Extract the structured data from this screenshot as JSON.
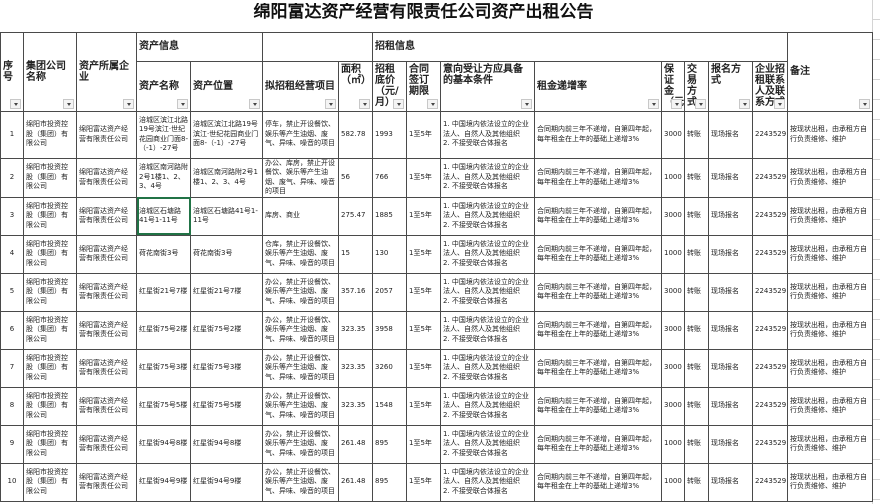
{
  "title": "绵阳富达资产经营有限责任公司资产出租公告",
  "groups": {
    "asset_info": "资产信息",
    "rent_info": "招租信息"
  },
  "headers": {
    "seq": "序号",
    "group_company": "集团公司名称",
    "owner": "资产所属企业",
    "asset_name": "资产名称",
    "asset_location": "资产位置",
    "business": "拟招租经营项目",
    "area": "面积（㎡）",
    "base_price": "招租底价（元/月）",
    "term": "合同签订期限",
    "conditions": "意向受让方应具备的基本条件",
    "increase": "租金递增率",
    "deposit": "保证金（元）",
    "trade": "交易方式",
    "signup": "报名方式",
    "contact": "企业招租联系人及联系方式",
    "remark": "备注"
  },
  "filter_icon": "dropdown-arrow-icon",
  "selection_color": "#217346",
  "rows": [
    {
      "seq": "1",
      "group_company": "绵阳市投资控股（集团）有限公司",
      "owner": "绵阳富达资产经营有限责任公司",
      "asset_name": "涪城区滨江北路19号滨江·世纪花园商业门面8-（-1）-27号",
      "asset_location": "涪城区滨江北路19号滨江·世纪花园商业门面8-（-1）-27号",
      "business": "停车，禁止开设餐饮、娱乐等产生油烟、废气、异味、噪音的项目",
      "area": "582.78",
      "base_price": "1993",
      "term": "1至5年",
      "conditions": "1. 中国境内依法设立的企业法人、自然人及其他组织\n2. 不接受联合体报名",
      "increase": "合同期内前三年不递增，自第四年起，每年租金在上年的基础上递增3%",
      "deposit": "3000",
      "trade": "转账",
      "signup": "现场报名",
      "contact": "2243529",
      "remark": "按现状出租，由承租方自行负责维修、维护"
    },
    {
      "seq": "2",
      "group_company": "绵阳市投资控股（集团）有限公司",
      "owner": "绵阳富达资产经营有限责任公司",
      "asset_name": "涪城区南河路附2号1楼1、2、3、4号",
      "asset_location": "涪城区南河路附2号1楼1、2、3、4号",
      "business": "办公、库房，禁止开设餐饮、娱乐等产生油烟、废气、异味、噪音的项目",
      "area": "56",
      "base_price": "766",
      "term": "1至5年",
      "conditions": "1. 中国境内依法设立的企业法人、自然人及其他组织\n2. 不接受联合体报名",
      "increase": "合同期内前三年不递增，自第四年起，每年租金在上年的基础上递增3%",
      "deposit": "1000",
      "trade": "转账",
      "signup": "现场报名",
      "contact": "2243529",
      "remark": "按现状出租，由承租方自行负责维修、维护"
    },
    {
      "seq": "3",
      "group_company": "绵阳市投资控股（集团）有限公司",
      "owner": "绵阳富达资产经营有限责任公司",
      "asset_name": "涪城区石塘路41号1-11号",
      "asset_location": "涪城区石塘路41号1-11号",
      "business": "库房、商业",
      "area": "275.47",
      "base_price": "1885",
      "term": "1至5年",
      "conditions": "1. 中国境内依法设立的企业法人、自然人及其他组织\n2. 不接受联合体报名",
      "increase": "合同期内前三年不递增，自第四年起，每年租金在上年的基础上递增3%",
      "deposit": "3000",
      "trade": "转账",
      "signup": "现场报名",
      "contact": "2243529",
      "remark": "按现状出租，由承租方自行负责维修、维护"
    },
    {
      "seq": "4",
      "group_company": "绵阳市投资控股（集团）有限公司",
      "owner": "绵阳富达资产经营有限责任公司",
      "asset_name": "荷花南街3号",
      "asset_location": "荷花南街3号",
      "business": "仓库，禁止开设餐饮、娱乐等产生油烟、废气、异味、噪音的项目",
      "area": "15",
      "base_price": "130",
      "term": "1至5年",
      "conditions": "1. 中国境内依法设立的企业法人、自然人及其他组织\n2. 不接受联合体报名",
      "increase": "合同期内前三年不递增，自第四年起，每年租金在上年的基础上递增3%",
      "deposit": "1000",
      "trade": "转账",
      "signup": "现场报名",
      "contact": "2243529",
      "remark": "按现状出租，由承租方自行负责维修、维护"
    },
    {
      "seq": "5",
      "group_company": "绵阳市投资控股（集团）有限公司",
      "owner": "绵阳富达资产经营有限责任公司",
      "asset_name": "红星街21号7楼",
      "asset_location": "红星街21号7楼",
      "business": "办公，禁止开设餐饮、娱乐等产生油烟、废气、异味、噪音的项目",
      "area": "357.16",
      "base_price": "2057",
      "term": "1至5年",
      "conditions": "1. 中国境内依法设立的企业法人、自然人及其他组织\n2. 不接受联合体报名",
      "increase": "合同期内前三年不递增，自第四年起，每年租金在上年的基础上递增3%",
      "deposit": "3000",
      "trade": "转账",
      "signup": "现场报名",
      "contact": "2243529",
      "remark": "按现状出租，由承租方自行负责维修、维护"
    },
    {
      "seq": "6",
      "group_company": "绵阳市投资控股（集团）有限公司",
      "owner": "绵阳富达资产经营有限责任公司",
      "asset_name": "红星街75号2楼",
      "asset_location": "红星街75号2楼",
      "business": "办公，禁止开设餐饮、娱乐等产生油烟、废气、异味、噪音的项目",
      "area": "323.35",
      "base_price": "3958",
      "term": "1至5年",
      "conditions": "1. 中国境内依法设立的企业法人、自然人及其他组织\n2. 不接受联合体报名",
      "increase": "合同期内前三年不递增，自第四年起，每年租金在上年的基础上递增3%",
      "deposit": "3000",
      "trade": "转账",
      "signup": "现场报名",
      "contact": "2243529",
      "remark": "按现状出租，由承租方自行负责维修、维护"
    },
    {
      "seq": "7",
      "group_company": "绵阳市投资控股（集团）有限公司",
      "owner": "绵阳富达资产经营有限责任公司",
      "asset_name": "红星街75号3楼",
      "asset_location": "红星街75号3楼",
      "business": "办公，禁止开设餐饮、娱乐等产生油烟、废气、异味、噪音的项目",
      "area": "323.35",
      "base_price": "3260",
      "term": "1至5年",
      "conditions": "1. 中国境内依法设立的企业法人、自然人及其他组织\n2. 不接受联合体报名",
      "increase": "合同期内前三年不递增，自第四年起，每年租金在上年的基础上递增3%",
      "deposit": "3000",
      "trade": "转账",
      "signup": "现场报名",
      "contact": "2243529",
      "remark": "按现状出租，由承租方自行负责维修、维护"
    },
    {
      "seq": "8",
      "group_company": "绵阳市投资控股（集团）有限公司",
      "owner": "绵阳富达资产经营有限责任公司",
      "asset_name": "红星街75号5楼",
      "asset_location": "红星街75号5楼",
      "business": "办公，禁止开设餐饮、娱乐等产生油烟、废气、异味、噪音的项目",
      "area": "323.35",
      "base_price": "1548",
      "term": "1至5年",
      "conditions": "1. 中国境内依法设立的企业法人、自然人及其他组织\n2. 不接受联合体报名",
      "increase": "合同期内前三年不递增，自第四年起，每年租金在上年的基础上递增3%",
      "deposit": "3000",
      "trade": "转账",
      "signup": "现场报名",
      "contact": "2243529",
      "remark": "按现状出租，由承租方自行负责维修、维护"
    },
    {
      "seq": "9",
      "group_company": "绵阳市投资控股（集团）有限公司",
      "owner": "绵阳富达资产经营有限责任公司",
      "asset_name": "红星街94号8楼",
      "asset_location": "红星街94号8楼",
      "business": "办公，禁止开设餐饮、娱乐等产生油烟、废气、异味、噪音的项目",
      "area": "261.48",
      "base_price": "895",
      "term": "1至5年",
      "conditions": "1. 中国境内依法设立的企业法人、自然人及其他组织\n2. 不接受联合体报名",
      "increase": "合同期内前三年不递增，自第四年起，每年租金在上年的基础上递增3%",
      "deposit": "1000",
      "trade": "转账",
      "signup": "现场报名",
      "contact": "2243529",
      "remark": "按现状出租，由承租方自行负责维修、维护"
    },
    {
      "seq": "10",
      "group_company": "绵阳市投资控股（集团）有限公司",
      "owner": "绵阳富达资产经营有限责任公司",
      "asset_name": "红星街94号9楼",
      "asset_location": "红星街94号9楼",
      "business": "办公，禁止开设餐饮、娱乐等产生油烟、废气、异味、噪音的项目",
      "area": "261.48",
      "base_price": "895",
      "term": "1至5年",
      "conditions": "1. 中国境内依法设立的企业法人、自然人及其他组织\n2. 不接受联合体报名",
      "increase": "合同期内前三年不递增，自第四年起，每年租金在上年的基础上递增3%",
      "deposit": "1000",
      "trade": "转账",
      "signup": "现场报名",
      "contact": "2243529",
      "remark": "按现状出租，由承租方自行负责维修、维护"
    }
  ]
}
